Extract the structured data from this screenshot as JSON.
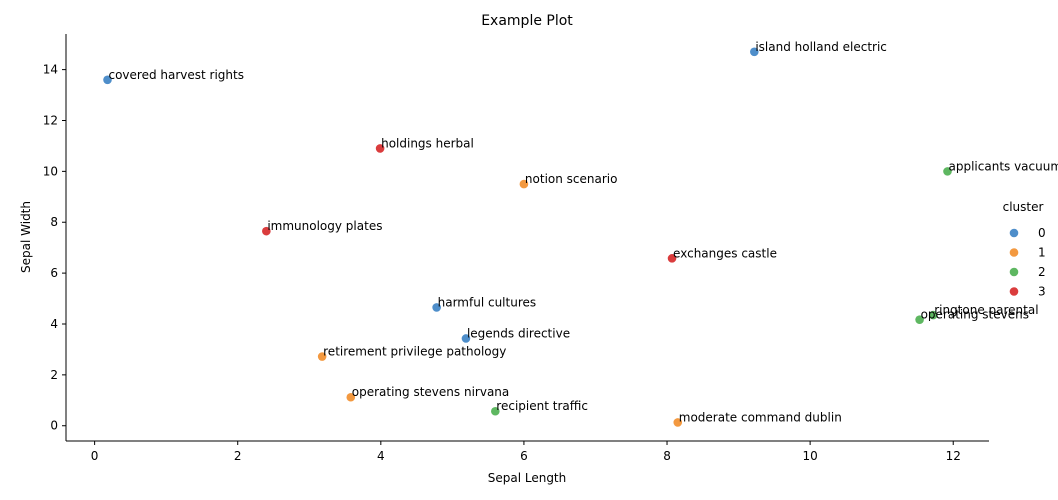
{
  "chart_data": {
    "type": "scatter",
    "title": "Example Plot",
    "xlabel": "Sepal Length",
    "ylabel": "Sepal Width",
    "xlim": [
      -0.4,
      12.5
    ],
    "ylim": [
      -0.6,
      15.4
    ],
    "xticks": [
      0,
      2,
      4,
      6,
      8,
      10,
      12
    ],
    "yticks": [
      0,
      2,
      4,
      6,
      8,
      10,
      12,
      14
    ],
    "grid": false,
    "legend": {
      "title": "cluster",
      "placement": "right",
      "entries": [
        {
          "label": "0",
          "color": "#3b82c4"
        },
        {
          "label": "1",
          "color": "#f28e2b"
        },
        {
          "label": "2",
          "color": "#4caf50"
        },
        {
          "label": "3",
          "color": "#d62728"
        }
      ]
    },
    "points": [
      {
        "x": 0.18,
        "y": 13.6,
        "cluster": 0,
        "label": "covered harvest rights"
      },
      {
        "x": 9.22,
        "y": 14.7,
        "cluster": 0,
        "label": "island holland electric"
      },
      {
        "x": 4.78,
        "y": 4.65,
        "cluster": 0,
        "label": "harmful cultures"
      },
      {
        "x": 5.19,
        "y": 3.43,
        "cluster": 0,
        "label": "legends directive"
      },
      {
        "x": 6.0,
        "y": 9.5,
        "cluster": 1,
        "label": "notion scenario"
      },
      {
        "x": 3.18,
        "y": 2.72,
        "cluster": 1,
        "label": "retirement privilege pathology"
      },
      {
        "x": 3.58,
        "y": 1.12,
        "cluster": 1,
        "label": "operating stevens nirvana"
      },
      {
        "x": 8.15,
        "y": 0.13,
        "cluster": 1,
        "label": "moderate command dublin"
      },
      {
        "x": 11.92,
        "y": 10.0,
        "cluster": 2,
        "label": "applicants vacuum"
      },
      {
        "x": 11.72,
        "y": 4.35,
        "cluster": 2,
        "label": "ringtone parental"
      },
      {
        "x": 11.53,
        "y": 4.17,
        "cluster": 2,
        "label": "operating stevens"
      },
      {
        "x": 5.6,
        "y": 0.57,
        "cluster": 2,
        "label": "recipient traffic"
      },
      {
        "x": 3.99,
        "y": 10.9,
        "cluster": 3,
        "label": "holdings herbal"
      },
      {
        "x": 2.4,
        "y": 7.65,
        "cluster": 3,
        "label": "immunology plates"
      },
      {
        "x": 8.07,
        "y": 6.58,
        "cluster": 3,
        "label": "exchanges castle"
      }
    ]
  }
}
